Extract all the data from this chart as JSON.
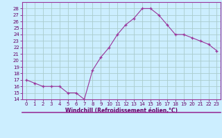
{
  "x": [
    0,
    1,
    2,
    3,
    4,
    5,
    6,
    7,
    8,
    9,
    10,
    11,
    12,
    13,
    14,
    15,
    16,
    17,
    18,
    19,
    20,
    21,
    22,
    23
  ],
  "y": [
    17,
    16.5,
    16,
    16,
    16,
    15,
    15,
    14,
    18.5,
    20.5,
    22,
    24,
    25.5,
    26.5,
    28,
    28,
    27,
    25.5,
    24,
    24,
    23.5,
    23,
    22.5,
    21.5
  ],
  "line_color": "#993399",
  "marker": "+",
  "bg_color": "#cceeff",
  "grid_color": "#aacccc",
  "axis_label_color": "#660066",
  "tick_color": "#660066",
  "xlabel": "Windchill (Refroidissement éolien,°C)",
  "ylim": [
    14,
    29
  ],
  "xlim": [
    -0.5,
    23.5
  ],
  "yticks": [
    14,
    15,
    16,
    17,
    18,
    19,
    20,
    21,
    22,
    23,
    24,
    25,
    26,
    27,
    28
  ],
  "xticks": [
    0,
    1,
    2,
    3,
    4,
    5,
    6,
    7,
    8,
    9,
    10,
    11,
    12,
    13,
    14,
    15,
    16,
    17,
    18,
    19,
    20,
    21,
    22,
    23
  ],
  "spine_color": "#993399",
  "bottom_bar_color": "#660066",
  "label_fontsize": 5.0,
  "tick_fontsize": 5.0
}
